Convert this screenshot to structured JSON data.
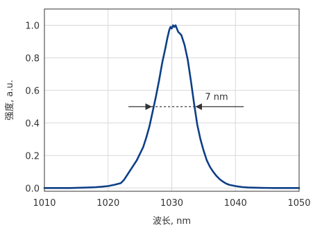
{
  "chart_data": {
    "type": "line",
    "xlabel": "波长, nm",
    "ylabel": "强度, a.u.",
    "xlim": [
      1010,
      1050
    ],
    "ylim": [
      -0.02,
      1.1
    ],
    "xticks": [
      1010,
      1020,
      1030,
      1040,
      1050
    ],
    "xtick_labels": [
      "1010",
      "1020",
      "1030",
      "1040",
      "1050"
    ],
    "yticks": [
      0.0,
      0.2,
      0.4,
      0.6,
      0.8,
      1.0
    ],
    "ytick_labels": [
      "0.0",
      "0.2",
      "0.4",
      "0.6",
      "0.8",
      "1.0"
    ],
    "grid": true,
    "series": [
      {
        "color": "#0d3f86",
        "x": [
          1010,
          1012,
          1014,
          1016,
          1018,
          1019,
          1020,
          1021,
          1022,
          1022.5,
          1023,
          1023.5,
          1024,
          1024.5,
          1025,
          1025.5,
          1026,
          1026.5,
          1027,
          1027.5,
          1028,
          1028.5,
          1029,
          1029.3,
          1029.6,
          1029.8,
          1030,
          1030.2,
          1030.4,
          1030.6,
          1030.8,
          1031,
          1031.5,
          1032,
          1032.5,
          1033,
          1033.5,
          1034,
          1034.5,
          1035,
          1035.5,
          1036,
          1036.5,
          1037,
          1037.5,
          1038,
          1038.5,
          1039,
          1040,
          1041,
          1042,
          1044,
          1046,
          1048,
          1050
        ],
        "y": [
          0.0,
          0.0,
          0.0,
          0.002,
          0.005,
          0.008,
          0.012,
          0.02,
          0.03,
          0.05,
          0.08,
          0.11,
          0.14,
          0.17,
          0.21,
          0.25,
          0.31,
          0.38,
          0.47,
          0.56,
          0.66,
          0.77,
          0.86,
          0.92,
          0.97,
          0.99,
          0.98,
          1.0,
          0.99,
          1.0,
          0.98,
          0.96,
          0.94,
          0.88,
          0.79,
          0.66,
          0.52,
          0.39,
          0.3,
          0.23,
          0.17,
          0.13,
          0.1,
          0.075,
          0.055,
          0.04,
          0.028,
          0.02,
          0.012,
          0.006,
          0.003,
          0.001,
          0.0,
          0.0,
          0.0
        ]
      }
    ],
    "annotations": [
      {
        "text": "7 nm",
        "y": 0.5,
        "x_from": 1026.8,
        "x_to": 1033.8,
        "arrow_left_start": 1023.2,
        "arrow_right_start": 1041.3
      }
    ]
  }
}
